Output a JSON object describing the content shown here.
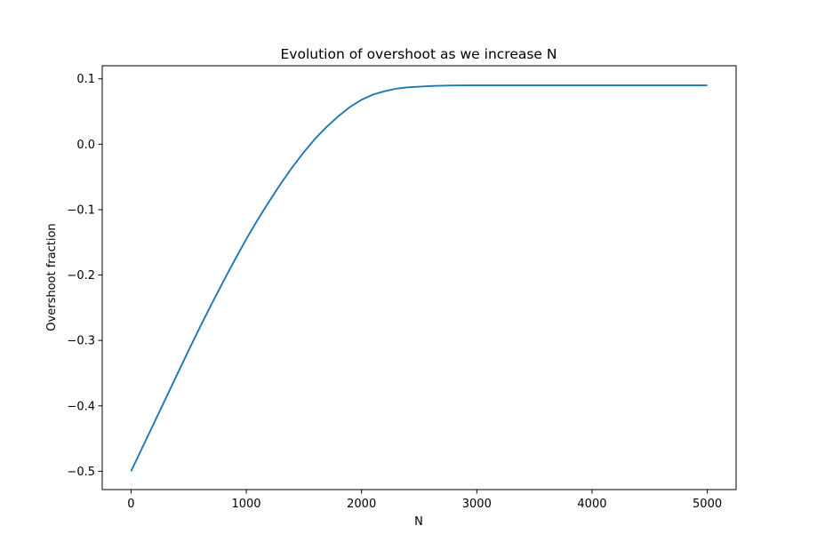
{
  "chart_data": {
    "type": "line",
    "title": "Evolution of overshoot as we increase N",
    "xlabel": "N",
    "ylabel": "Overshoot fraction",
    "xlim": [
      -250,
      5250
    ],
    "ylim": [
      -0.528,
      0.12
    ],
    "grid": false,
    "x_ticks": [
      0,
      1000,
      2000,
      3000,
      4000,
      5000
    ],
    "x_tick_labels": [
      "0",
      "1000",
      "2000",
      "3000",
      "4000",
      "5000"
    ],
    "y_ticks": [
      0.1,
      0.0,
      -0.1,
      -0.2,
      -0.3,
      -0.4,
      -0.5
    ],
    "y_tick_labels": [
      "0.1",
      "0.0",
      "−0.1",
      "−0.2",
      "−0.3",
      "−0.4",
      "−0.5"
    ],
    "series": [
      {
        "color": "#1f77b4",
        "x": [
          0,
          100,
          200,
          300,
          400,
          500,
          600,
          700,
          800,
          900,
          1000,
          1100,
          1200,
          1300,
          1400,
          1500,
          1600,
          1700,
          1800,
          1900,
          2000,
          2100,
          2200,
          2300,
          2400,
          2500,
          2600,
          2700,
          2800,
          2900,
          3000,
          3100,
          3200,
          3300,
          3400,
          3500,
          3600,
          3700,
          3800,
          3900,
          4000,
          4100,
          4200,
          4300,
          4400,
          4500,
          4600,
          4700,
          4800,
          4900,
          4999
        ],
        "y": [
          -0.5,
          -0.463,
          -0.426,
          -0.389,
          -0.352,
          -0.315,
          -0.279,
          -0.244,
          -0.21,
          -0.177,
          -0.145,
          -0.115,
          -0.087,
          -0.06,
          -0.035,
          -0.012,
          0.009,
          0.027,
          0.043,
          0.057,
          0.068,
          0.076,
          0.081,
          0.085,
          0.087,
          0.088,
          0.089,
          0.0895,
          0.0899,
          0.09,
          0.09,
          0.09,
          0.09,
          0.09,
          0.09,
          0.09,
          0.09,
          0.09,
          0.09,
          0.09,
          0.09,
          0.09,
          0.09,
          0.09,
          0.09,
          0.09,
          0.09,
          0.09,
          0.09,
          0.09,
          0.09
        ]
      }
    ]
  }
}
